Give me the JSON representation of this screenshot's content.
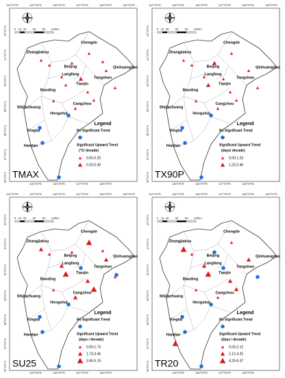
{
  "lon_labels": [
    "114°0'0\"E",
    "115°0'0\"E",
    "116°0'0\"E",
    "117°0'0\"E",
    "118°0'0\"E",
    "119°0'0\"E"
  ],
  "lat_labels": [
    "42°0'0\"N",
    "41°0'0\"N",
    "40°0'0\"N",
    "39°0'0\"N",
    "38°0'0\"N",
    "37°0'0\"N",
    "36°0'0\"N"
  ],
  "scale_labels": [
    "0",
    "15",
    "30",
    "60",
    "90",
    "120",
    "km"
  ],
  "cities": [
    "Chengde",
    "Zhangjiakou",
    "Beijing",
    "Langfang",
    "Tianjin",
    "Tangshan",
    "Qinhuangdao",
    "Baoding",
    "Cangzhou",
    "Shijiazhuang",
    "Hengshui",
    "Xingtai",
    "Handan"
  ],
  "legend": {
    "title": "Legend",
    "no_trend": "No Significant Trend",
    "upward": "Significant Upward Trend"
  },
  "panels": [
    {
      "label": "TMAX",
      "units": "(°C/ decade)",
      "classes": [
        "0.00-0.20",
        "0.20-0.40"
      ]
    },
    {
      "label": "TX90P",
      "units": "(days/ decade)",
      "classes": [
        "0.00-1.23",
        "1.23-2.46"
      ]
    },
    {
      "label": "SU25",
      "units": "(days / decade)",
      "classes": [
        "0.00-1.73",
        "1.73-3.46",
        "3.46-5.19"
      ]
    },
    {
      "label": "TR20",
      "units": "(days / decade)",
      "classes": [
        "0.00-2.12",
        "2.12-4.25",
        "4.25-6.37"
      ]
    }
  ]
}
